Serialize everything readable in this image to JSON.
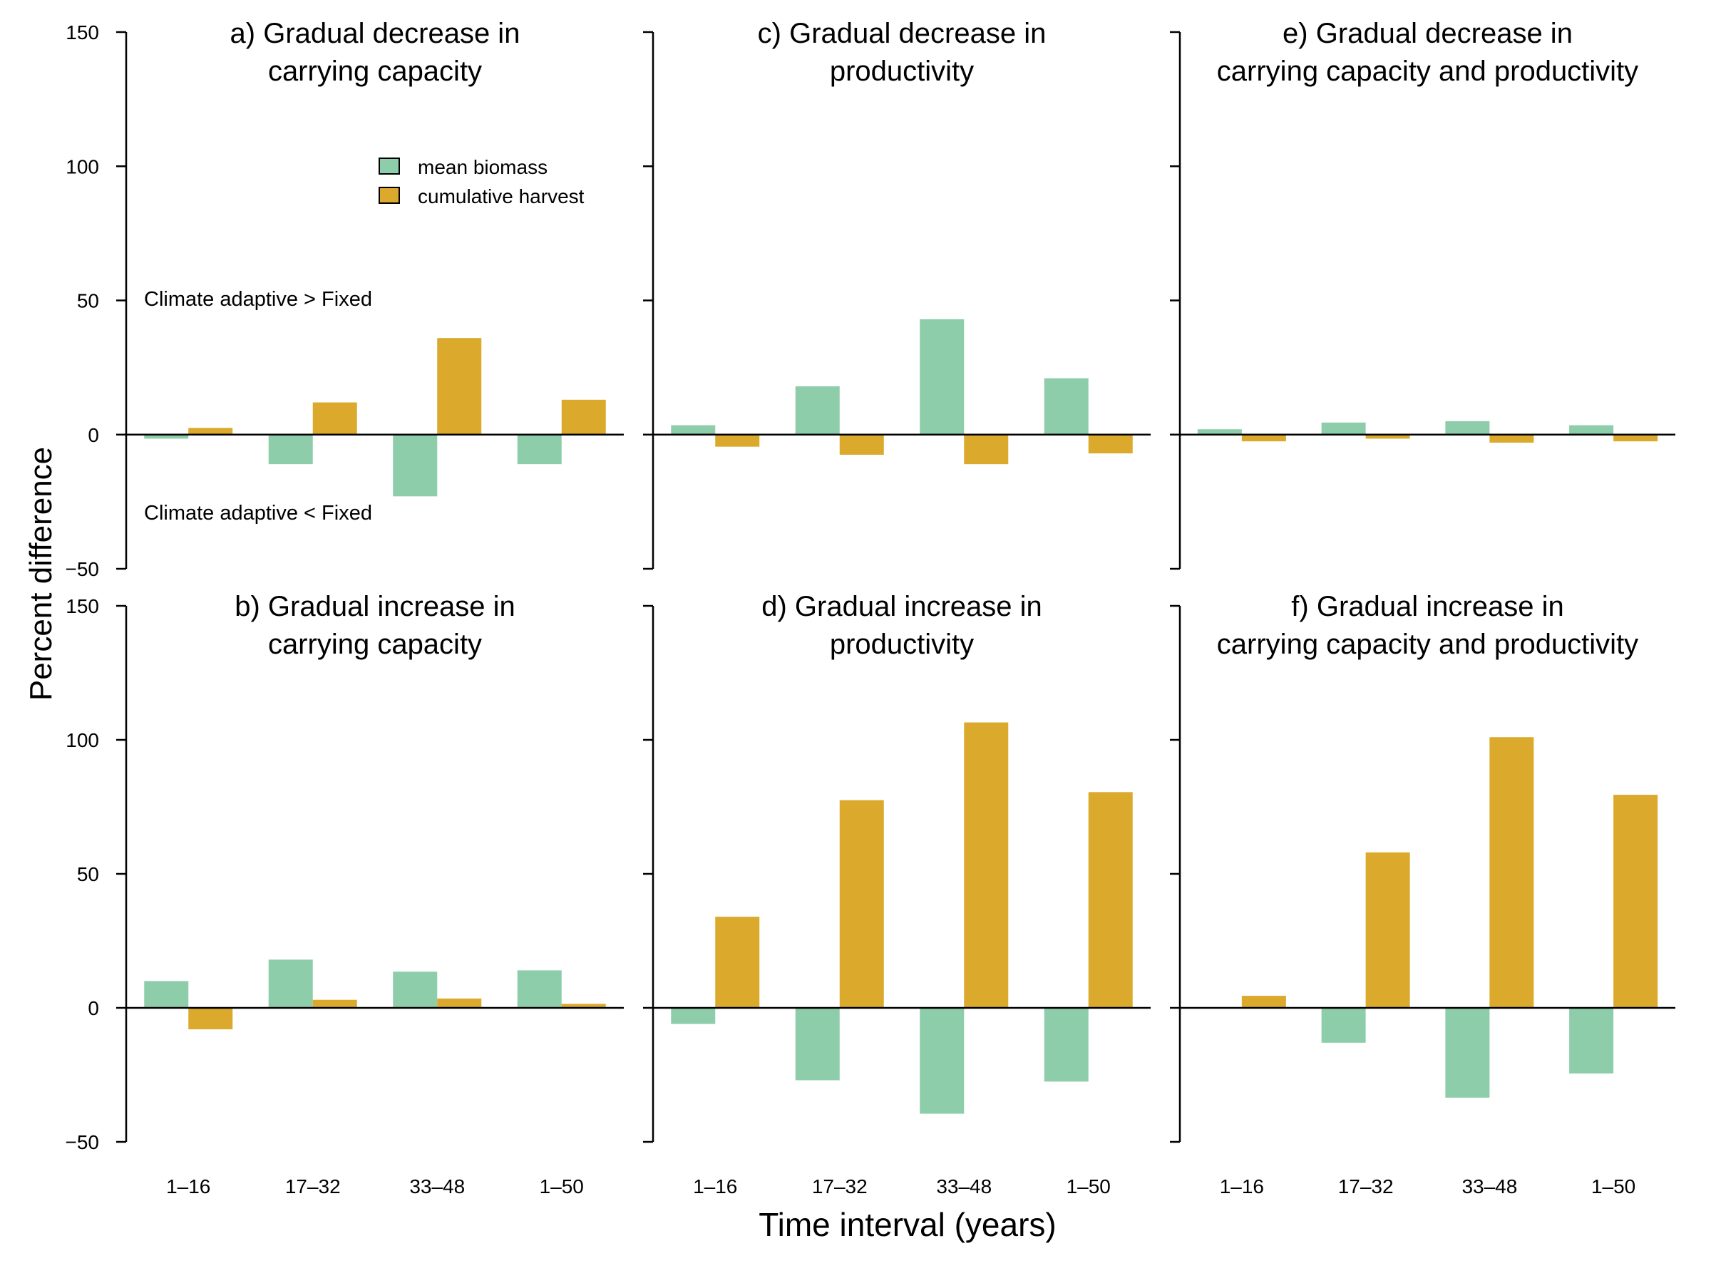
{
  "figure": {
    "ylabel": "Percent difference",
    "xlabel": "Time interval (years)",
    "legend": {
      "placement": "top-right of panel a",
      "items": [
        {
          "label": "mean biomass",
          "color": "#8dcdaa"
        },
        {
          "label": "cumulative harvest",
          "color": "#dba92c"
        }
      ]
    },
    "annotations": {
      "above": "Climate adaptive > Fixed",
      "below": "Climate adaptive < Fixed"
    }
  },
  "chart_data": [
    {
      "type": "bar",
      "title_lines": [
        "a) Gradual decrease in",
        "carrying capacity"
      ],
      "categories": [
        "1–16",
        "17–32",
        "33–48",
        "1–50"
      ],
      "series": [
        {
          "name": "mean biomass",
          "color": "#8dcdaa",
          "values": [
            -1.5,
            -11,
            -23,
            -11
          ]
        },
        {
          "name": "cumulative harvest",
          "color": "#dba92c",
          "values": [
            2.5,
            12,
            36,
            13
          ]
        }
      ],
      "ylim": [
        -50,
        150
      ],
      "yticks": [
        -50,
        0,
        50,
        100,
        150
      ]
    },
    {
      "type": "bar",
      "title_lines": [
        "b) Gradual increase in",
        "carrying capacity"
      ],
      "categories": [
        "1–16",
        "17–32",
        "33–48",
        "1–50"
      ],
      "series": [
        {
          "name": "mean biomass",
          "color": "#8dcdaa",
          "values": [
            10,
            18,
            13.5,
            14
          ]
        },
        {
          "name": "cumulative harvest",
          "color": "#dba92c",
          "values": [
            -8,
            3,
            3.5,
            1.5
          ]
        }
      ],
      "ylim": [
        -50,
        150
      ],
      "yticks": [
        -50,
        0,
        50,
        100,
        150
      ]
    },
    {
      "type": "bar",
      "title_lines": [
        "c) Gradual decrease in",
        "productivity"
      ],
      "categories": [
        "1–16",
        "17–32",
        "33–48",
        "1–50"
      ],
      "series": [
        {
          "name": "mean biomass",
          "color": "#8dcdaa",
          "values": [
            3.5,
            18,
            43,
            21
          ]
        },
        {
          "name": "cumulative harvest",
          "color": "#dba92c",
          "values": [
            -4.5,
            -7.5,
            -11,
            -7
          ]
        }
      ],
      "ylim": [
        -50,
        150
      ],
      "yticks": [
        -50,
        0,
        50,
        100,
        150
      ]
    },
    {
      "type": "bar",
      "title_lines": [
        "d) Gradual increase in",
        "productivity"
      ],
      "categories": [
        "1–16",
        "17–32",
        "33–48",
        "1–50"
      ],
      "series": [
        {
          "name": "mean biomass",
          "color": "#8dcdaa",
          "values": [
            -6,
            -27,
            -39.5,
            -27.5
          ]
        },
        {
          "name": "cumulative harvest",
          "color": "#dba92c",
          "values": [
            34,
            77.5,
            106.5,
            80.5
          ]
        }
      ],
      "ylim": [
        -50,
        150
      ],
      "yticks": [
        -50,
        0,
        50,
        100,
        150
      ]
    },
    {
      "type": "bar",
      "title_lines": [
        "e) Gradual decrease in",
        "carrying capacity and productivity"
      ],
      "categories": [
        "1–16",
        "17–32",
        "33–48",
        "1–50"
      ],
      "series": [
        {
          "name": "mean biomass",
          "color": "#8dcdaa",
          "values": [
            2,
            4.5,
            5,
            3.5
          ]
        },
        {
          "name": "cumulative harvest",
          "color": "#dba92c",
          "values": [
            -2.5,
            -1.5,
            -3,
            -2.5
          ]
        }
      ],
      "ylim": [
        -50,
        150
      ],
      "yticks": [
        -50,
        0,
        50,
        100,
        150
      ]
    },
    {
      "type": "bar",
      "title_lines": [
        "f) Gradual increase in",
        "carrying capacity and productivity"
      ],
      "categories": [
        "1–16",
        "17–32",
        "33–48",
        "1–50"
      ],
      "series": [
        {
          "name": "mean biomass",
          "color": "#8dcdaa",
          "values": [
            0,
            -13,
            -33.5,
            -24.5
          ]
        },
        {
          "name": "cumulative harvest",
          "color": "#dba92c",
          "values": [
            4.5,
            58,
            101,
            79.5
          ]
        }
      ],
      "ylim": [
        -50,
        150
      ],
      "yticks": [
        -50,
        0,
        50,
        100,
        150
      ]
    }
  ]
}
